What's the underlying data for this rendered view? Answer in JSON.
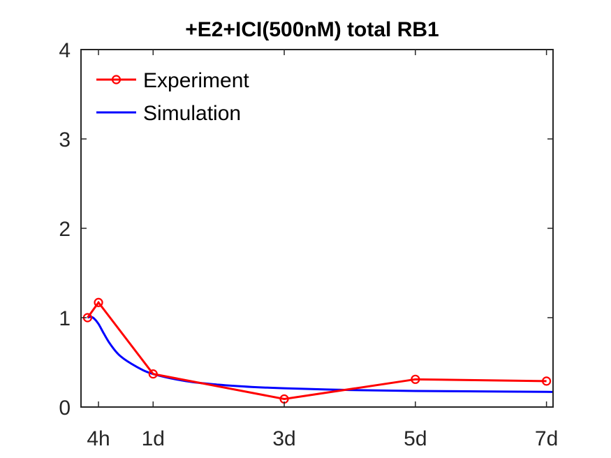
{
  "chart_data": {
    "type": "line",
    "title": "+E2+ICI(500nM) total RB1",
    "xlabel": "",
    "ylabel": "",
    "xlim": [
      -0.1,
      7.1
    ],
    "ylim": [
      0,
      4
    ],
    "x_unit": "days",
    "x_ticks": [
      {
        "value": 0.1667,
        "label": "4h"
      },
      {
        "value": 1,
        "label": "1d"
      },
      {
        "value": 3,
        "label": "3d"
      },
      {
        "value": 5,
        "label": "5d"
      },
      {
        "value": 7,
        "label": "7d"
      }
    ],
    "y_ticks": [
      {
        "value": 0,
        "label": "0"
      },
      {
        "value": 1,
        "label": "1"
      },
      {
        "value": 2,
        "label": "2"
      },
      {
        "value": 3,
        "label": "3"
      },
      {
        "value": 4,
        "label": "4"
      }
    ],
    "grid": false,
    "legend_position": "top-left",
    "series": [
      {
        "name": "Experiment",
        "color": "#ff0000",
        "marker": "circle",
        "x": [
          0,
          0.1667,
          1,
          3,
          5,
          7
        ],
        "y": [
          1.0,
          1.17,
          0.37,
          0.09,
          0.31,
          0.29
        ]
      },
      {
        "name": "Simulation",
        "color": "#0000ff",
        "marker": "none",
        "x": [
          0,
          0.05,
          0.1,
          0.167,
          0.25,
          0.35,
          0.5,
          0.75,
          1,
          1.5,
          2,
          2.5,
          3,
          4,
          5,
          6,
          7,
          7.1
        ],
        "y": [
          1.0,
          1.01,
          0.99,
          0.93,
          0.82,
          0.7,
          0.57,
          0.45,
          0.37,
          0.29,
          0.25,
          0.225,
          0.21,
          0.19,
          0.18,
          0.175,
          0.17,
          0.168
        ]
      }
    ]
  }
}
